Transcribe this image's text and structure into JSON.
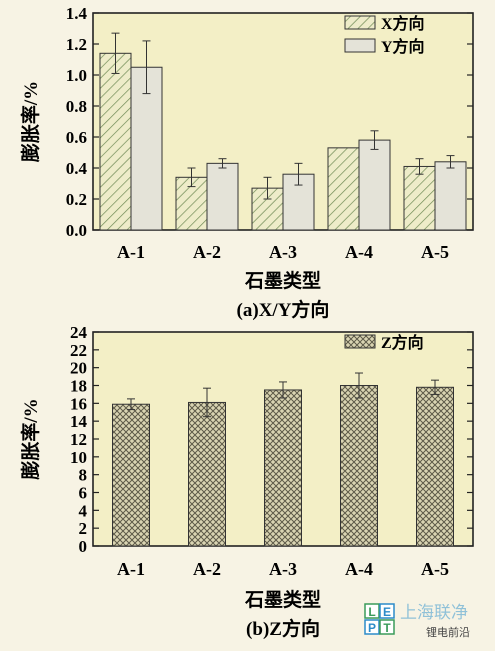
{
  "chart_data": [
    {
      "type": "bar",
      "categories": [
        "A-1",
        "A-2",
        "A-3",
        "A-4",
        "A-5"
      ],
      "series": [
        {
          "name": "X方向",
          "values": [
            1.14,
            0.34,
            0.27,
            0.53,
            0.41
          ],
          "errors": [
            0.13,
            0.06,
            0.07,
            0.0,
            0.05
          ]
        },
        {
          "name": "Y方向",
          "values": [
            1.05,
            0.43,
            0.36,
            0.58,
            0.44
          ],
          "errors": [
            0.17,
            0.03,
            0.07,
            0.06,
            0.04
          ]
        }
      ],
      "xlabel": "石墨类型",
      "ylabel": "膨胀率/%",
      "ylim": [
        0,
        1.4
      ],
      "yticks": [
        "0.0",
        "0.2",
        "0.4",
        "0.6",
        "0.8",
        "1.0",
        "1.2",
        "1.4"
      ],
      "caption": "(a)X/Y方向",
      "legend": "top-right",
      "grid": false,
      "colors": {
        "plot_bg": "#f3efc6",
        "bar_fill": "#e4e3d8",
        "hatch": "#6f8a55",
        "cross": "#5a5a4a"
      }
    },
    {
      "type": "bar",
      "categories": [
        "A-1",
        "A-2",
        "A-3",
        "A-4",
        "A-5"
      ],
      "series": [
        {
          "name": "Z方向",
          "values": [
            15.9,
            16.1,
            17.5,
            18.0,
            17.8
          ],
          "errors": [
            0.6,
            1.6,
            0.9,
            1.4,
            0.8
          ]
        }
      ],
      "xlabel": "石墨类型",
      "ylabel": "膨胀率/%",
      "ylim": [
        0,
        24
      ],
      "yticks": [
        "0",
        "2",
        "4",
        "6",
        "8",
        "10",
        "12",
        "14",
        "16",
        "18",
        "20",
        "22",
        "24"
      ],
      "caption": "(b)Z方向",
      "legend": "top-right",
      "grid": false
    }
  ],
  "watermark": {
    "logo_letters": [
      "L",
      "E",
      "P",
      "T"
    ],
    "text": "上海联净",
    "subtext": "锂电前沿"
  }
}
